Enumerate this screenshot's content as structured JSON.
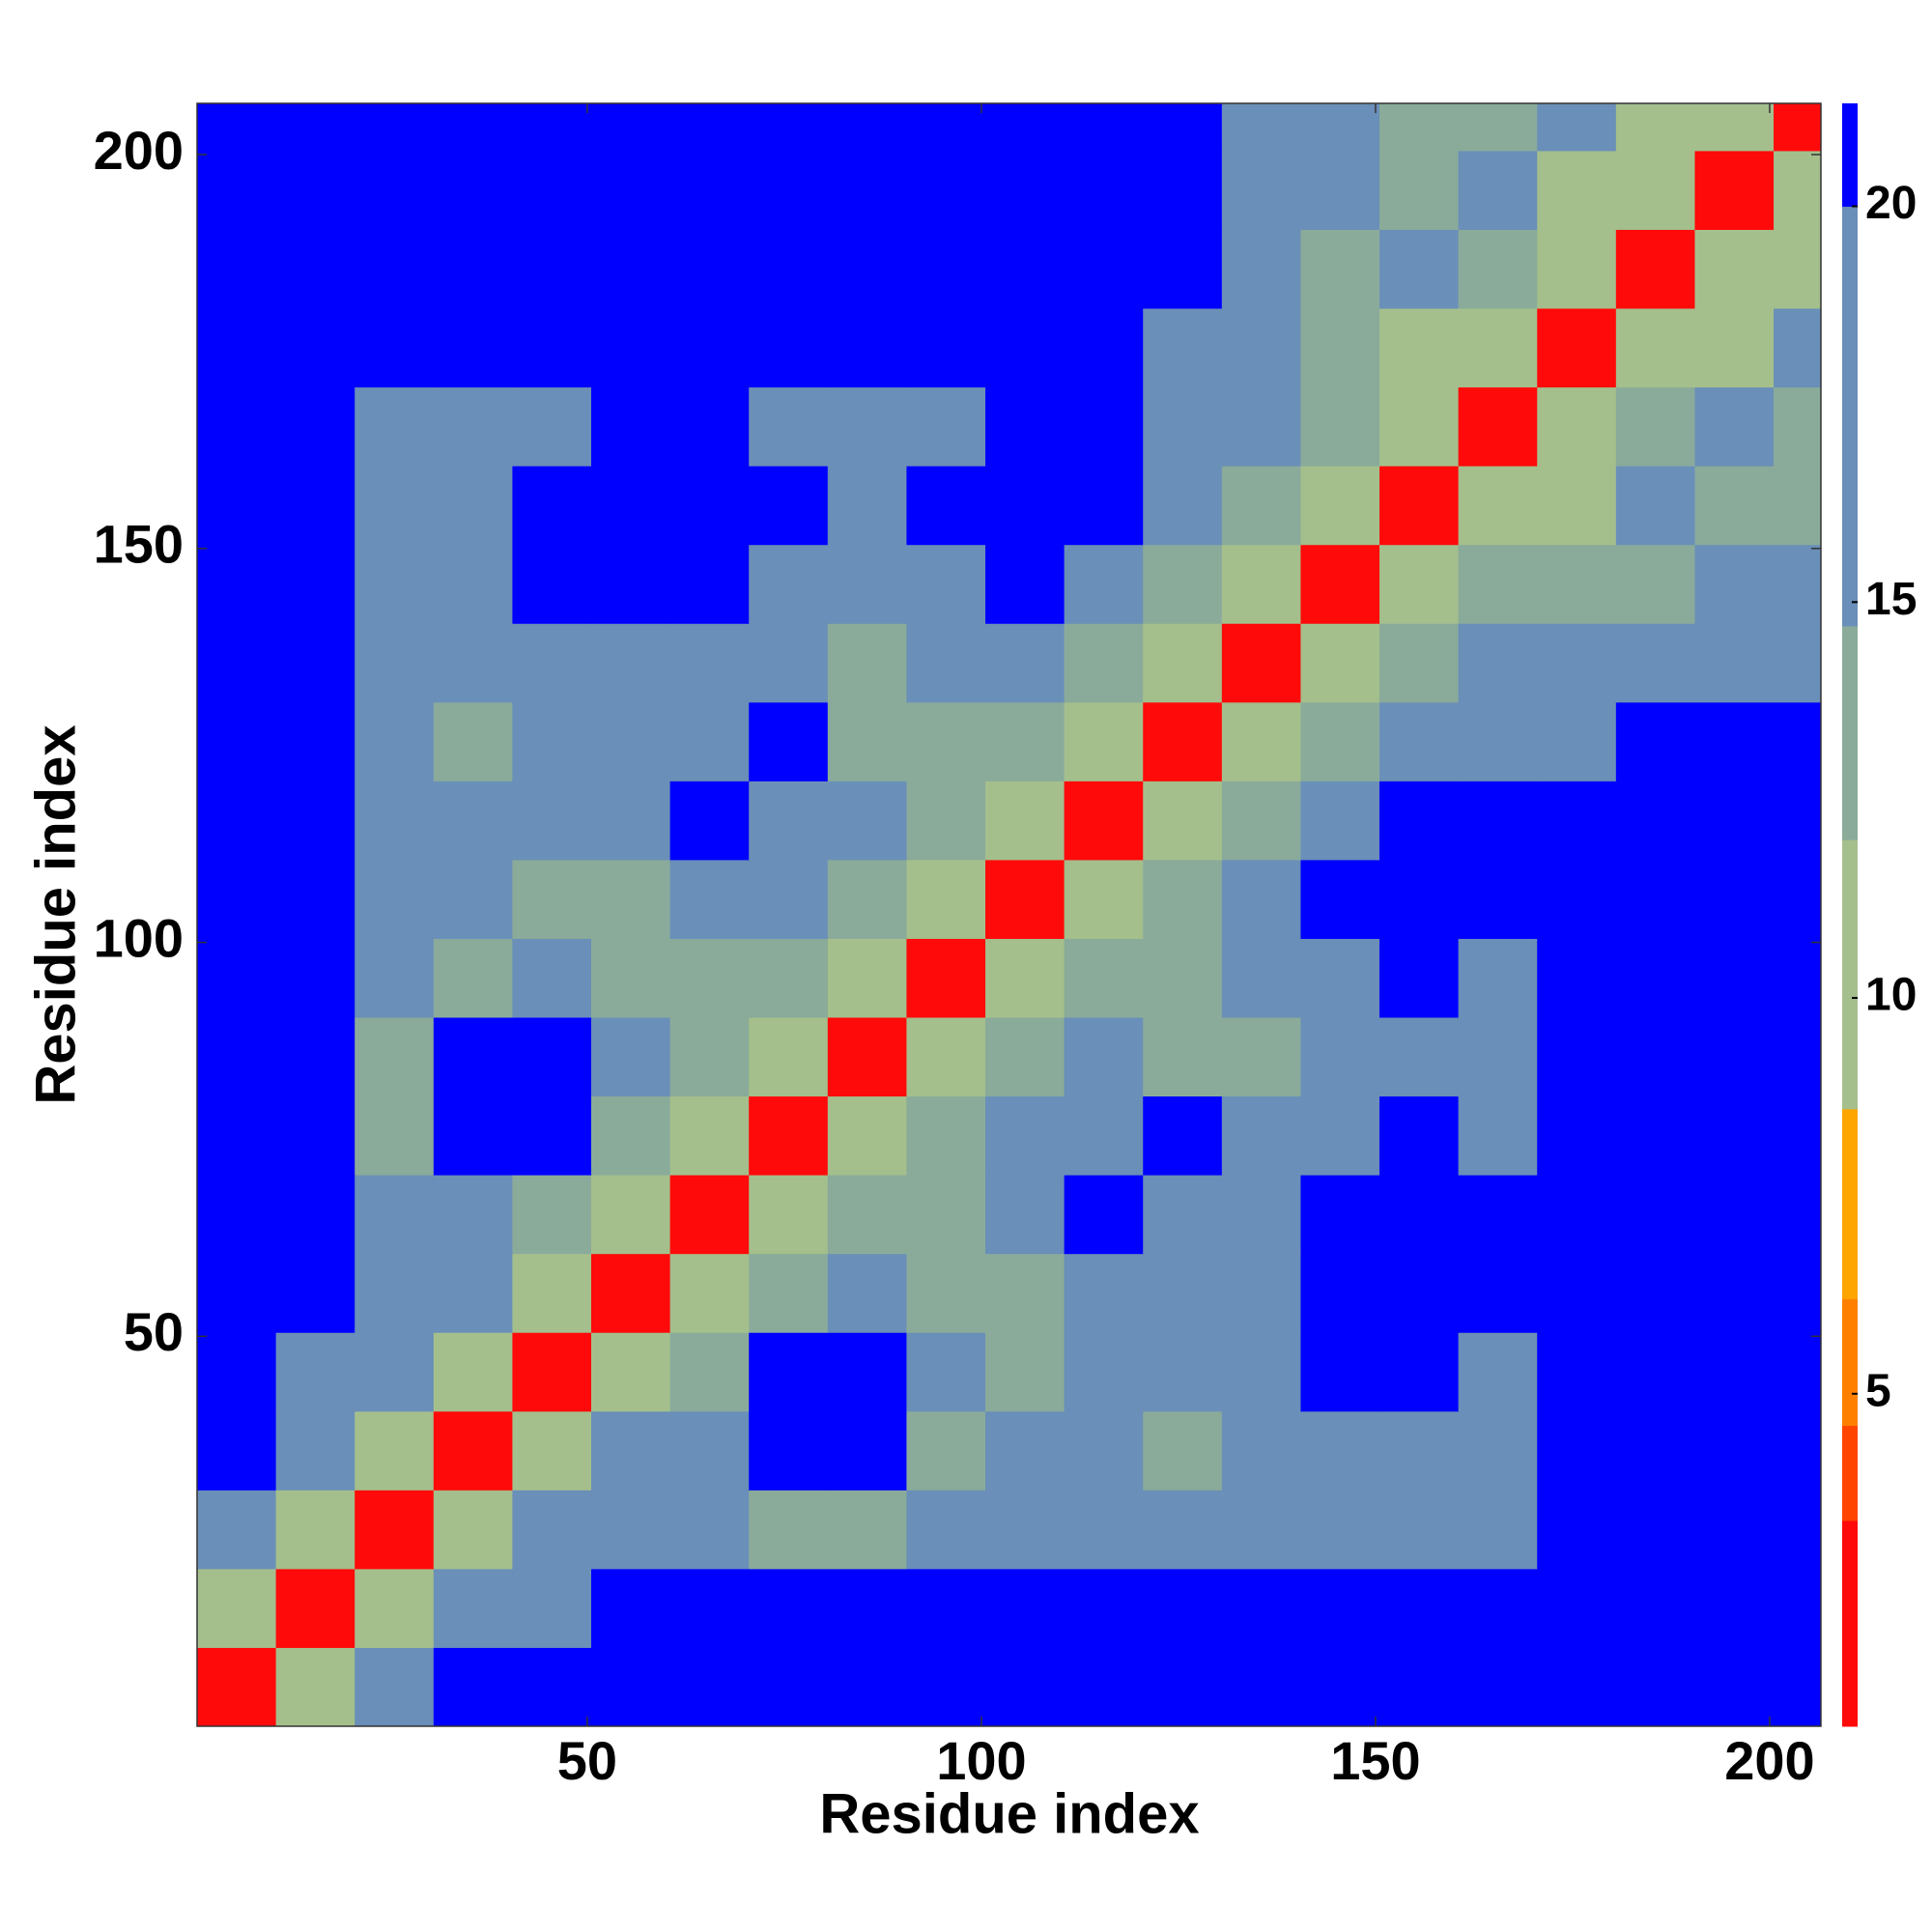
{
  "chart_data": {
    "type": "heatmap",
    "xlabel": "Residue index",
    "ylabel": "Residue index",
    "xlim": [
      0.5,
      206.5
    ],
    "ylim": [
      0.5,
      206.5
    ],
    "xticks": [
      50,
      100,
      150,
      200
    ],
    "yticks": [
      50,
      100,
      150,
      200
    ],
    "xbins": [
      0.5,
      10.5,
      20.5,
      30.5,
      40.5,
      50.5,
      60.5,
      70.5,
      80.5,
      90.5,
      100.5,
      110.5,
      120.5,
      130.5,
      140.5,
      150.5,
      160.5,
      170.5,
      180.5,
      190.5,
      200.5,
      206.5
    ],
    "ybins": [
      0.5,
      10.5,
      20.5,
      30.5,
      40.5,
      50.5,
      60.5,
      70.5,
      80.5,
      90.5,
      100.5,
      110.5,
      120.5,
      130.5,
      140.5,
      150.5,
      160.5,
      170.5,
      180.5,
      190.5,
      200.5,
      206.5
    ],
    "z": [
      [
        3,
        11,
        17,
        21,
        21,
        21,
        21,
        21,
        21,
        21,
        21,
        21,
        21,
        21,
        21,
        21,
        21,
        21,
        21,
        21,
        21
      ],
      [
        11,
        3,
        11,
        15,
        17,
        21,
        21,
        21,
        21,
        21,
        21,
        21,
        21,
        21,
        21,
        21,
        21,
        21,
        21,
        21,
        21
      ],
      [
        17,
        11,
        3,
        11,
        15,
        17,
        15,
        14,
        14,
        15,
        18,
        17,
        16,
        16,
        18,
        19,
        16,
        21,
        21,
        21,
        21
      ],
      [
        21,
        15,
        11,
        3,
        11,
        15,
        15,
        21,
        21,
        14,
        15,
        15,
        14,
        16,
        18,
        18,
        16,
        21,
        21,
        21,
        21
      ],
      [
        21,
        17,
        15,
        11,
        3,
        11,
        14,
        20,
        21,
        16,
        14,
        15,
        15,
        17,
        21,
        21,
        19,
        21,
        21,
        21,
        21
      ],
      [
        21,
        21,
        17,
        15,
        11,
        3,
        11,
        14,
        15,
        13,
        14,
        18,
        18,
        19,
        21,
        21,
        21,
        21,
        21,
        21,
        21
      ],
      [
        21,
        21,
        15,
        15,
        14,
        11,
        3,
        11,
        14,
        12,
        17,
        21,
        19,
        18,
        21,
        21,
        21,
        21,
        21,
        21,
        21
      ],
      [
        21,
        21,
        14,
        21,
        20,
        14,
        11,
        3,
        11,
        13,
        16,
        18,
        21,
        17,
        18,
        21,
        18,
        21,
        21,
        21,
        21
      ],
      [
        21,
        21,
        14,
        21,
        21,
        15,
        14,
        11,
        3,
        11,
        13,
        18,
        13,
        13,
        16,
        19,
        17,
        21,
        21,
        21,
        21
      ],
      [
        21,
        21,
        15,
        14,
        16,
        13,
        12,
        13,
        11,
        3,
        11,
        14,
        12,
        17,
        17,
        21,
        17,
        21,
        21,
        21,
        21
      ],
      [
        21,
        21,
        18,
        15,
        14,
        14,
        17,
        16,
        13,
        11,
        3,
        11,
        14,
        19,
        21,
        21,
        21,
        21,
        21,
        21,
        21
      ],
      [
        21,
        21,
        17,
        15,
        15,
        18,
        21,
        18,
        18,
        14,
        11,
        3,
        11,
        13,
        16,
        21,
        21,
        21,
        21,
        21,
        21
      ],
      [
        21,
        21,
        16,
        14,
        15,
        18,
        19,
        21,
        13,
        12,
        14,
        11,
        3,
        11,
        13,
        16,
        16,
        19,
        21,
        21,
        21
      ],
      [
        21,
        21,
        16,
        16,
        17,
        19,
        18,
        17,
        13,
        17,
        19,
        13,
        11,
        3,
        11,
        13,
        15,
        16,
        15,
        16,
        17
      ],
      [
        21,
        21,
        18,
        18,
        21,
        21,
        21,
        18,
        16,
        17,
        21,
        16,
        13,
        11,
        3,
        11,
        12,
        13,
        14,
        15,
        16
      ],
      [
        21,
        21,
        19,
        18,
        21,
        21,
        21,
        21,
        19,
        21,
        21,
        21,
        16,
        13,
        11,
        3,
        11,
        11,
        15,
        13,
        14
      ],
      [
        21,
        21,
        16,
        16,
        19,
        21,
        21,
        18,
        17,
        17,
        21,
        21,
        16,
        15,
        12,
        11,
        3,
        11,
        13,
        15,
        14
      ],
      [
        21,
        21,
        21,
        21,
        21,
        21,
        21,
        21,
        21,
        21,
        21,
        21,
        19,
        16,
        13,
        11,
        11,
        3,
        11,
        11,
        15
      ],
      [
        21,
        21,
        21,
        21,
        21,
        21,
        21,
        21,
        21,
        21,
        21,
        21,
        21,
        15,
        14,
        15,
        13,
        11,
        3,
        11,
        10
      ],
      [
        21,
        21,
        21,
        21,
        21,
        21,
        21,
        21,
        21,
        21,
        21,
        21,
        21,
        16,
        15,
        13,
        15,
        11,
        11,
        3,
        11
      ],
      [
        21,
        21,
        21,
        21,
        21,
        21,
        21,
        21,
        21,
        21,
        21,
        21,
        21,
        17,
        16,
        14,
        14,
        15,
        10,
        11,
        3
      ]
    ],
    "color_levels": [
      0.8,
      3.4,
      4.6,
      6.2,
      8.6,
      12,
      14.7,
      20,
      21.3
    ],
    "colors": [
      "#ff0a0a",
      "#ff4500",
      "#ff8000",
      "#ffa500",
      "#a4bf8c",
      "#8aab9a",
      "#6a8fb8",
      "#0000ff"
    ],
    "colorbar_lim": [
      0.8,
      21.3
    ],
    "colorbar_ticks": [
      5,
      10,
      15,
      20
    ]
  }
}
